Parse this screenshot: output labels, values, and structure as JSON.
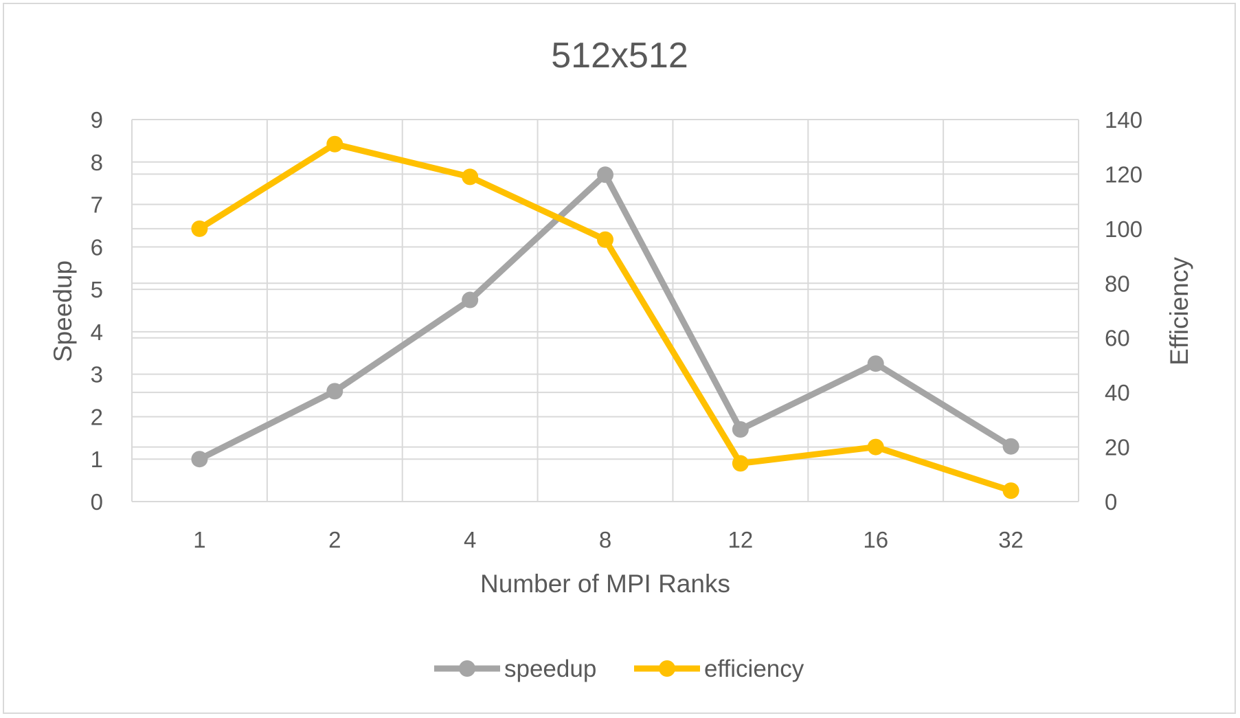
{
  "chart_data": {
    "type": "line",
    "title": "512x512",
    "xlabel": "Number of MPI Ranks",
    "ylabel": "Speedup",
    "y2label": "Efficiency",
    "categories": [
      "1",
      "2",
      "4",
      "8",
      "12",
      "16",
      "32"
    ],
    "ylim": [
      0,
      9
    ],
    "y2lim": [
      0,
      140
    ],
    "yticks": [
      "0",
      "1",
      "2",
      "3",
      "4",
      "5",
      "6",
      "7",
      "8",
      "9"
    ],
    "y2ticks": [
      "0",
      "20",
      "40",
      "60",
      "80",
      "100",
      "120",
      "140"
    ],
    "grid": true,
    "legend_position": "bottom",
    "series": [
      {
        "name": "speedup",
        "axis": "left",
        "color": "#a5a5a5",
        "values": [
          1.0,
          2.6,
          4.75,
          7.7,
          1.7,
          3.25,
          1.3
        ]
      },
      {
        "name": "efficiency",
        "axis": "right",
        "color": "#ffc000",
        "values": [
          100,
          131,
          119,
          96,
          14,
          20,
          4
        ]
      }
    ]
  }
}
